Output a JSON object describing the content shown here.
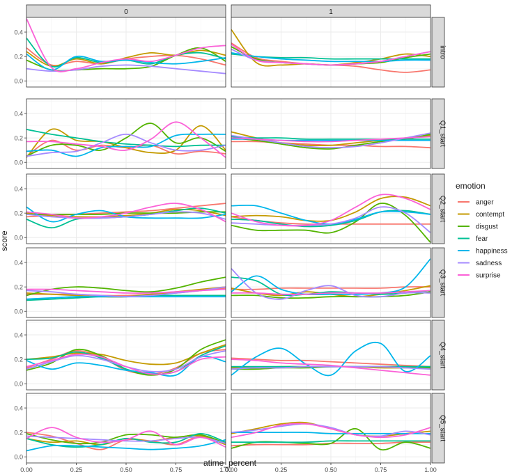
{
  "chart_data": {
    "type": "line",
    "title": "",
    "xlabel": "atime_percent",
    "ylabel": "score",
    "xlim": [
      0,
      1
    ],
    "x_ticks": [
      0,
      0.25,
      0.5,
      0.75,
      1
    ],
    "x_tick_labels": [
      "0.00",
      "0.25",
      "0.50",
      "0.75",
      "1.00"
    ],
    "ylim": [
      -0.05,
      0.52
    ],
    "y_ticks": [
      0,
      0.2,
      0.4
    ],
    "y_tick_labels": [
      "0.0",
      "0.2",
      "0.4"
    ],
    "columns": [
      "0",
      "1"
    ],
    "rows": [
      "intro",
      "Q1_start",
      "Q2_start",
      "Q3_start",
      "Q4_start",
      "Q5_start"
    ],
    "legend": {
      "title": "emotion",
      "position": "right"
    },
    "emotions": [
      {
        "name": "anger",
        "color": "#F8766D"
      },
      {
        "name": "contempt",
        "color": "#C49A00"
      },
      {
        "name": "disgust",
        "color": "#53B400"
      },
      {
        "name": "fear",
        "color": "#00C094"
      },
      {
        "name": "happiness",
        "color": "#00B6EB"
      },
      {
        "name": "sadness",
        "color": "#A58AFF"
      },
      {
        "name": "surprise",
        "color": "#FB61D7"
      }
    ],
    "x": [
      0,
      0.125,
      0.25,
      0.375,
      0.5,
      0.625,
      0.75,
      0.875,
      1
    ],
    "panels": [
      {
        "row": "intro",
        "col": "0",
        "series": {
          "anger": [
            0.27,
            0.13,
            0.16,
            0.14,
            0.18,
            0.2,
            0.21,
            0.18,
            0.13
          ],
          "contempt": [
            0.24,
            0.12,
            0.18,
            0.14,
            0.19,
            0.23,
            0.21,
            0.25,
            0.21
          ],
          "disgust": [
            0.17,
            0.09,
            0.09,
            0.1,
            0.1,
            0.12,
            0.21,
            0.27,
            0.16
          ],
          "fear": [
            0.35,
            0.12,
            0.19,
            0.15,
            0.17,
            0.14,
            0.21,
            0.23,
            0.18
          ],
          "happiness": [
            0.22,
            0.09,
            0.2,
            0.16,
            0.17,
            0.15,
            0.14,
            0.16,
            0.19
          ],
          "sadness": [
            0.1,
            0.08,
            0.09,
            0.12,
            0.13,
            0.12,
            0.1,
            0.08,
            0.06
          ],
          "surprise": [
            0.51,
            0.11,
            0.1,
            0.15,
            0.18,
            0.16,
            0.21,
            0.27,
            0.29
          ]
        }
      },
      {
        "row": "intro",
        "col": "1",
        "series": {
          "anger": [
            0.31,
            0.19,
            0.16,
            0.14,
            0.13,
            0.12,
            0.09,
            0.07,
            0.09
          ],
          "contempt": [
            0.42,
            0.15,
            0.13,
            0.14,
            0.13,
            0.15,
            0.18,
            0.22,
            0.2
          ],
          "disgust": [
            0.28,
            0.18,
            0.15,
            0.14,
            0.13,
            0.14,
            0.15,
            0.19,
            0.22
          ],
          "fear": [
            0.22,
            0.2,
            0.19,
            0.19,
            0.18,
            0.18,
            0.18,
            0.18,
            0.18
          ],
          "happiness": [
            0.23,
            0.2,
            0.18,
            0.17,
            0.16,
            0.16,
            0.16,
            0.17,
            0.17
          ],
          "sadness": [
            0.26,
            0.17,
            0.15,
            0.14,
            0.13,
            0.14,
            0.16,
            0.2,
            0.24
          ],
          "surprise": [
            0.3,
            0.17,
            0.15,
            0.14,
            0.13,
            0.14,
            0.16,
            0.2,
            0.24
          ]
        }
      },
      {
        "row": "Q1_start",
        "col": "0",
        "series": {
          "anger": [
            0.05,
            0.18,
            0.1,
            0.14,
            0.12,
            0.14,
            0.07,
            0.09,
            0.07
          ],
          "contempt": [
            0.04,
            0.27,
            0.18,
            0.17,
            0.12,
            0.08,
            0.1,
            0.3,
            0.1
          ],
          "disgust": [
            0.05,
            0.14,
            0.14,
            0.1,
            0.2,
            0.32,
            0.16,
            0.2,
            0.09
          ],
          "fear": [
            0.27,
            0.23,
            0.2,
            0.17,
            0.15,
            0.14,
            0.13,
            0.14,
            0.14
          ],
          "happiness": [
            0.09,
            0.1,
            0.05,
            0.12,
            0.13,
            0.13,
            0.22,
            0.23,
            0.23
          ],
          "sadness": [
            0.05,
            0.08,
            0.09,
            0.16,
            0.23,
            0.16,
            0.1,
            0.1,
            0.14
          ],
          "surprise": [
            0.17,
            0.17,
            0.15,
            0.13,
            0.1,
            0.19,
            0.33,
            0.2,
            0.04
          ]
        }
      },
      {
        "row": "Q1_start",
        "col": "1",
        "series": {
          "anger": [
            0.17,
            0.17,
            0.16,
            0.15,
            0.14,
            0.14,
            0.13,
            0.13,
            0.12
          ],
          "contempt": [
            0.25,
            0.2,
            0.16,
            0.14,
            0.14,
            0.16,
            0.18,
            0.2,
            0.22
          ],
          "disgust": [
            0.2,
            0.18,
            0.15,
            0.12,
            0.11,
            0.14,
            0.17,
            0.19,
            0.23
          ],
          "fear": [
            0.21,
            0.2,
            0.2,
            0.19,
            0.19,
            0.19,
            0.19,
            0.19,
            0.19
          ],
          "happiness": [
            0.19,
            0.19,
            0.18,
            0.18,
            0.18,
            0.18,
            0.18,
            0.18,
            0.18
          ],
          "sadness": [
            0.22,
            0.19,
            0.16,
            0.13,
            0.12,
            0.13,
            0.16,
            0.2,
            0.24
          ],
          "surprise": [
            0.2,
            0.19,
            0.18,
            0.17,
            0.17,
            0.18,
            0.19,
            0.2,
            0.21
          ]
        }
      },
      {
        "row": "Q2_start",
        "col": "0",
        "series": {
          "anger": [
            0.17,
            0.18,
            0.19,
            0.2,
            0.21,
            0.22,
            0.24,
            0.26,
            0.28
          ],
          "contempt": [
            0.2,
            0.18,
            0.17,
            0.17,
            0.18,
            0.2,
            0.23,
            0.22,
            0.18
          ],
          "disgust": [
            0.19,
            0.19,
            0.19,
            0.19,
            0.2,
            0.2,
            0.2,
            0.21,
            0.21
          ],
          "fear": [
            0.15,
            0.08,
            0.15,
            0.16,
            0.17,
            0.19,
            0.22,
            0.24,
            0.2
          ],
          "happiness": [
            0.25,
            0.13,
            0.19,
            0.22,
            0.17,
            0.16,
            0.16,
            0.16,
            0.19
          ],
          "sadness": [
            0.19,
            0.17,
            0.16,
            0.16,
            0.17,
            0.19,
            0.21,
            0.2,
            0.15
          ],
          "surprise": [
            0.21,
            0.19,
            0.16,
            0.17,
            0.2,
            0.25,
            0.28,
            0.23,
            0.13
          ]
        }
      },
      {
        "row": "Q2_start",
        "col": "1",
        "series": {
          "anger": [
            0.17,
            0.14,
            0.12,
            0.11,
            0.11,
            0.11,
            0.11,
            0.11,
            0.11
          ],
          "contempt": [
            0.17,
            0.18,
            0.17,
            0.14,
            0.14,
            0.21,
            0.32,
            0.33,
            0.26
          ],
          "disgust": [
            0.1,
            0.06,
            0.06,
            0.06,
            0.04,
            0.13,
            0.28,
            0.18,
            -0.04
          ],
          "fear": [
            0.15,
            0.14,
            0.11,
            0.09,
            0.1,
            0.14,
            0.21,
            0.22,
            0.19
          ],
          "happiness": [
            0.26,
            0.26,
            0.2,
            0.14,
            0.11,
            0.15,
            0.21,
            0.21,
            0.19
          ],
          "sadness": [
            0.12,
            0.11,
            0.1,
            0.1,
            0.11,
            0.16,
            0.25,
            0.2,
            0.04
          ],
          "surprise": [
            0.2,
            0.13,
            0.1,
            0.1,
            0.14,
            0.25,
            0.35,
            0.32,
            0.23
          ]
        }
      },
      {
        "row": "Q3_start",
        "col": "0",
        "series": {
          "anger": [
            0.14,
            0.14,
            0.14,
            0.13,
            0.13,
            0.14,
            0.15,
            0.17,
            0.19
          ],
          "contempt": [
            0.15,
            0.14,
            0.13,
            0.12,
            0.12,
            0.14,
            0.16,
            0.18,
            0.2
          ],
          "disgust": [
            0.13,
            0.18,
            0.2,
            0.19,
            0.17,
            0.16,
            0.19,
            0.24,
            0.28
          ],
          "fear": [
            0.09,
            0.1,
            0.11,
            0.12,
            0.12,
            0.13,
            0.13,
            0.13,
            0.13
          ],
          "happiness": [
            0.1,
            0.11,
            0.12,
            0.12,
            0.12,
            0.12,
            0.12,
            0.12,
            0.12
          ],
          "sadness": [
            0.17,
            0.16,
            0.14,
            0.13,
            0.12,
            0.13,
            0.15,
            0.17,
            0.2
          ],
          "surprise": [
            0.18,
            0.18,
            0.17,
            0.16,
            0.15,
            0.15,
            0.16,
            0.17,
            0.18
          ]
        }
      },
      {
        "row": "Q3_start",
        "col": "1",
        "series": {
          "anger": [
            0.18,
            0.18,
            0.19,
            0.19,
            0.19,
            0.19,
            0.19,
            0.2,
            0.2
          ],
          "contempt": [
            0.19,
            0.15,
            0.13,
            0.16,
            0.14,
            0.12,
            0.14,
            0.17,
            0.21
          ],
          "disgust": [
            0.13,
            0.13,
            0.11,
            0.11,
            0.12,
            0.12,
            0.12,
            0.13,
            0.16
          ],
          "fear": [
            0.28,
            0.25,
            0.14,
            0.14,
            0.16,
            0.15,
            0.14,
            0.15,
            0.17
          ],
          "happiness": [
            0.16,
            0.29,
            0.18,
            0.14,
            0.14,
            0.14,
            0.15,
            0.2,
            0.43
          ],
          "sadness": [
            0.35,
            0.15,
            0.1,
            0.17,
            0.21,
            0.13,
            0.12,
            0.15,
            0.15
          ],
          "surprise": [
            0.15,
            0.15,
            0.14,
            0.14,
            0.15,
            0.15,
            0.15,
            0.16,
            0.17
          ]
        }
      },
      {
        "row": "Q4_start",
        "col": "0",
        "series": {
          "anger": [
            0.13,
            0.2,
            0.27,
            0.22,
            0.11,
            0.08,
            0.13,
            0.25,
            0.28
          ],
          "contempt": [
            0.2,
            0.22,
            0.25,
            0.24,
            0.19,
            0.16,
            0.17,
            0.25,
            0.32
          ],
          "disgust": [
            0.11,
            0.17,
            0.28,
            0.23,
            0.12,
            0.07,
            0.12,
            0.28,
            0.36
          ],
          "fear": [
            0.2,
            0.21,
            0.26,
            0.21,
            0.12,
            0.08,
            0.1,
            0.23,
            0.31
          ],
          "happiness": [
            0.19,
            0.12,
            0.17,
            0.15,
            0.11,
            0.09,
            0.07,
            0.22,
            0.18
          ],
          "sadness": [
            0.12,
            0.18,
            0.23,
            0.2,
            0.14,
            0.1,
            0.12,
            0.22,
            0.27
          ],
          "surprise": [
            0.14,
            0.19,
            0.24,
            0.22,
            0.14,
            0.08,
            0.1,
            0.2,
            0.22
          ]
        }
      },
      {
        "row": "Q4_start",
        "col": "1",
        "series": {
          "anger": [
            0.21,
            0.2,
            0.19,
            0.19,
            0.18,
            0.17,
            0.16,
            0.15,
            0.14
          ],
          "contempt": [
            0.13,
            0.13,
            0.14,
            0.14,
            0.14,
            0.14,
            0.13,
            0.13,
            0.13
          ],
          "disgust": [
            0.12,
            0.12,
            0.13,
            0.13,
            0.14,
            0.14,
            0.14,
            0.14,
            0.13
          ],
          "fear": [
            0.14,
            0.14,
            0.14,
            0.14,
            0.14,
            0.14,
            0.14,
            0.14,
            0.14
          ],
          "happiness": [
            0.07,
            0.22,
            0.29,
            0.16,
            0.07,
            0.27,
            0.33,
            0.1,
            0.23
          ],
          "sadness": [
            0.12,
            0.13,
            0.13,
            0.14,
            0.14,
            0.14,
            0.14,
            0.13,
            0.12
          ],
          "surprise": [
            0.2,
            0.19,
            0.17,
            0.16,
            0.15,
            0.13,
            0.11,
            0.09,
            0.07
          ]
        }
      },
      {
        "row": "Q5_start",
        "col": "0",
        "series": {
          "anger": [
            0.2,
            0.17,
            0.11,
            0.06,
            0.14,
            0.13,
            0.1,
            0.17,
            0.11
          ],
          "contempt": [
            0.15,
            0.12,
            0.13,
            0.1,
            0.15,
            0.13,
            0.16,
            0.17,
            0.1
          ],
          "disgust": [
            0.19,
            0.14,
            0.11,
            0.12,
            0.18,
            0.18,
            0.16,
            0.18,
            0.11
          ],
          "fear": [
            0.15,
            0.1,
            0.08,
            0.1,
            0.15,
            0.12,
            0.12,
            0.19,
            0.12
          ],
          "happiness": [
            0.05,
            0.09,
            0.09,
            0.08,
            0.07,
            0.06,
            0.07,
            0.09,
            0.14
          ],
          "sadness": [
            0.17,
            0.16,
            0.15,
            0.14,
            0.13,
            0.13,
            0.15,
            0.16,
            0.11
          ],
          "surprise": [
            0.15,
            0.24,
            0.16,
            0.12,
            0.14,
            0.21,
            0.1,
            0.16,
            0.08
          ]
        }
      },
      {
        "row": "Q5_start",
        "col": "1",
        "series": {
          "anger": [
            0.09,
            0.1,
            0.1,
            0.1,
            0.11,
            0.11,
            0.11,
            0.12,
            0.12
          ],
          "contempt": [
            0.19,
            0.23,
            0.27,
            0.28,
            0.23,
            0.18,
            0.17,
            0.19,
            0.21
          ],
          "disgust": [
            0.07,
            0.12,
            0.12,
            0.11,
            0.11,
            0.23,
            0.06,
            0.12,
            0.07
          ],
          "fear": [
            0.12,
            0.12,
            0.12,
            0.12,
            0.13,
            0.13,
            0.13,
            0.13,
            0.13
          ],
          "happiness": [
            0.2,
            0.2,
            0.2,
            0.2,
            0.19,
            0.19,
            0.19,
            0.19,
            0.19
          ],
          "sadness": [
            0.2,
            0.22,
            0.25,
            0.27,
            0.24,
            0.18,
            0.17,
            0.21,
            0.18
          ],
          "surprise": [
            0.16,
            0.2,
            0.26,
            0.27,
            0.23,
            0.18,
            0.16,
            0.18,
            0.24
          ]
        }
      }
    ]
  }
}
